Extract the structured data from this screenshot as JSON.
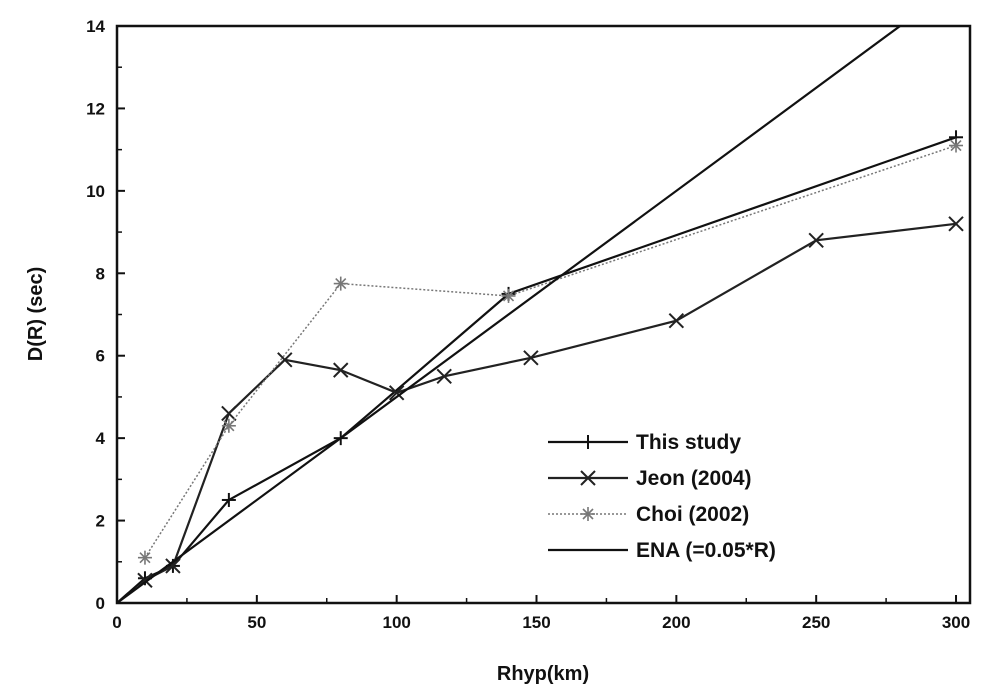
{
  "chart_data": {
    "type": "line",
    "xlabel": "Rhyp(km)",
    "ylabel": "D(R) (sec)",
    "xlim": [
      0,
      305
    ],
    "ylim": [
      0,
      14
    ],
    "xticks": [
      0,
      50,
      100,
      150,
      200,
      250,
      300
    ],
    "yticks": [
      0,
      2,
      4,
      6,
      8,
      10,
      12,
      14
    ],
    "grid": false,
    "legend_position": "bottom-right",
    "series": [
      {
        "name": "This study",
        "marker": "plus",
        "color": "#111111",
        "x": [
          0,
          10,
          20,
          40,
          80,
          140,
          300
        ],
        "y": [
          0,
          0.6,
          0.9,
          2.5,
          4.0,
          7.5,
          11.3
        ]
      },
      {
        "name": "Jeon (2004)",
        "marker": "x",
        "color": "#222222",
        "x": [
          10,
          20,
          40,
          60,
          80,
          100,
          117,
          148,
          200,
          250,
          300
        ],
        "y": [
          0.55,
          0.9,
          4.6,
          5.9,
          5.65,
          5.1,
          5.5,
          5.95,
          6.85,
          8.8,
          9.2
        ]
      },
      {
        "name": "Choi (2002)",
        "marker": "star",
        "color": "#777777",
        "dashed": true,
        "x": [
          10,
          40,
          80,
          140,
          300
        ],
        "y": [
          1.1,
          4.3,
          7.75,
          7.45,
          11.1
        ]
      },
      {
        "name": "ENA (=0.05*R)",
        "marker": "none",
        "color": "#111111",
        "x": [
          0,
          305
        ],
        "y": [
          0,
          15.25
        ]
      }
    ]
  }
}
